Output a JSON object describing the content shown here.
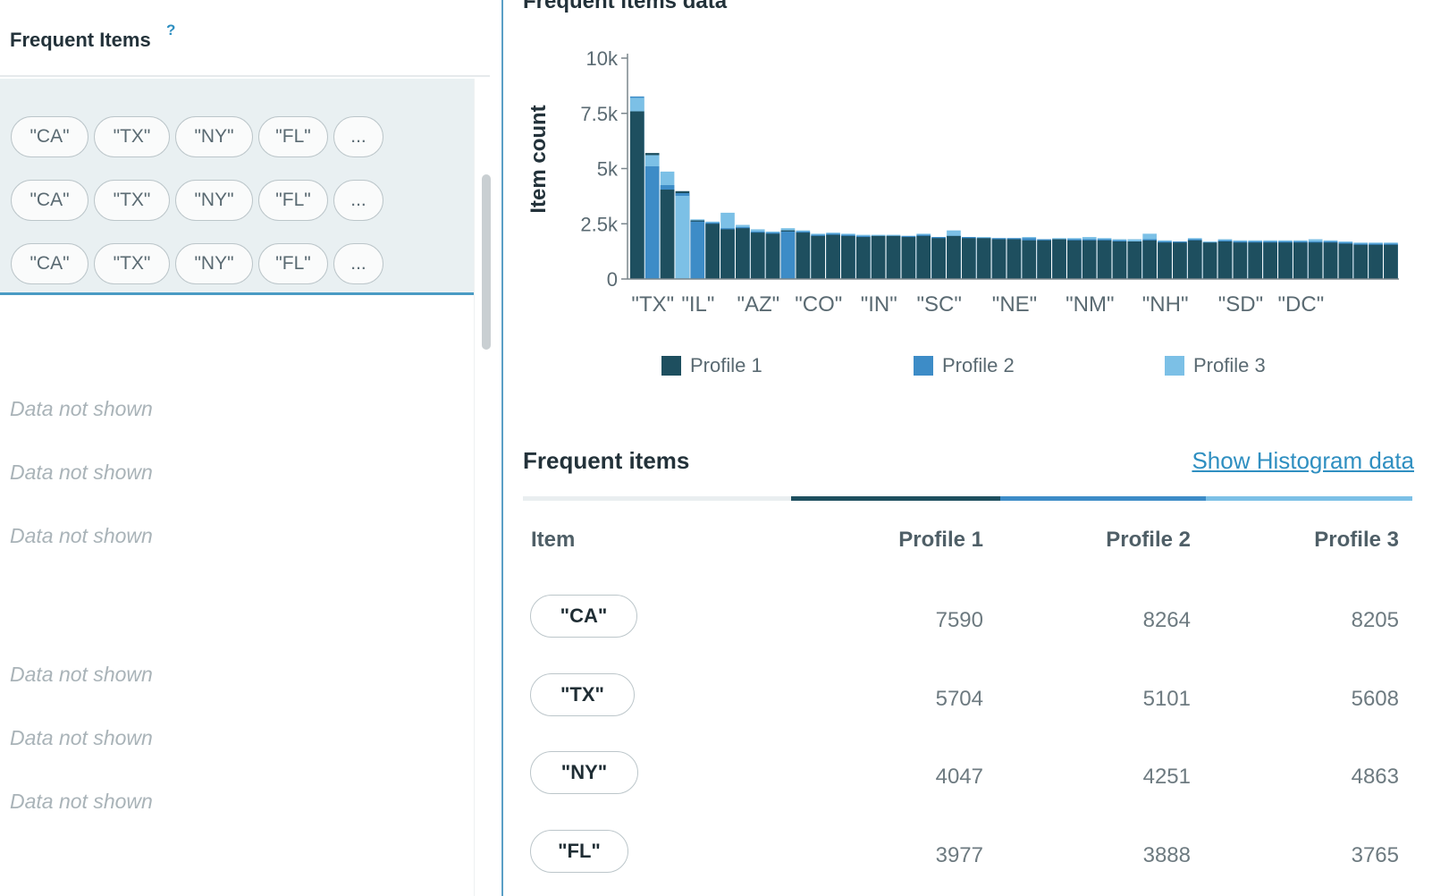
{
  "left": {
    "title": "Frequent Items",
    "help": "?",
    "chip_rows": [
      [
        "\"CA\"",
        "\"TX\"",
        "\"NY\"",
        "\"FL\"",
        "..."
      ],
      [
        "\"CA\"",
        "\"TX\"",
        "\"NY\"",
        "\"FL\"",
        "..."
      ],
      [
        "\"CA\"",
        "\"TX\"",
        "\"NY\"",
        "\"FL\"",
        "..."
      ]
    ],
    "not_shown": [
      "Data not shown",
      "Data not shown",
      "Data not shown",
      "Data not shown",
      "Data not shown",
      "Data not shown"
    ]
  },
  "right": {
    "title": "Frequent items data",
    "section_title": "Frequent items",
    "histogram_link": "Show Histogram data",
    "table": {
      "headers": [
        "Item",
        "Profile 1",
        "Profile 2",
        "Profile 3"
      ],
      "rows": [
        {
          "item": "\"CA\"",
          "p1": "7590",
          "p2": "8264",
          "p3": "8205"
        },
        {
          "item": "\"TX\"",
          "p1": "5704",
          "p2": "5101",
          "p3": "5608"
        },
        {
          "item": "\"NY\"",
          "p1": "4047",
          "p2": "4251",
          "p3": "4863"
        },
        {
          "item": "\"FL\"",
          "p1": "3977",
          "p2": "3888",
          "p3": "3765"
        }
      ]
    }
  },
  "colors": {
    "profile1": "#1e4f5f",
    "profile2": "#3d8cc7",
    "profile3": "#7cc0e6",
    "accent": "#4a9bc4"
  },
  "chart_data": {
    "type": "bar",
    "ylabel": "Item count",
    "ylim": [
      0,
      10000
    ],
    "y_ticks": [
      "0",
      "2.5k",
      "5k",
      "7.5k",
      "10k"
    ],
    "y_tick_values": [
      0,
      2500,
      5000,
      7500,
      10000
    ],
    "x_tick_labels": [
      "\"TX\"",
      "\"IL\"",
      "\"AZ\"",
      "\"CO\"",
      "\"IN\"",
      "\"SC\"",
      "\"NE\"",
      "\"NM\"",
      "\"NH\"",
      "\"SD\"",
      "\"DC\""
    ],
    "x_tick_positions": [
      1,
      4,
      8,
      12,
      16,
      20,
      25,
      30,
      35,
      40,
      44
    ],
    "categories_count": 51,
    "legend": [
      "Profile 1",
      "Profile 2",
      "Profile 3"
    ],
    "series": [
      {
        "name": "Profile 3",
        "values": [
          8205,
          5608,
          4863,
          3765,
          2700,
          2600,
          3000,
          2450,
          2250,
          2150,
          2300,
          2200,
          2050,
          2100,
          2050,
          2000,
          2000,
          2000,
          1950,
          2050,
          1900,
          2200,
          1900,
          1900,
          1850,
          1850,
          1900,
          1800,
          1850,
          1850,
          1900,
          1850,
          1800,
          1800,
          2050,
          1750,
          1700,
          1850,
          1700,
          1800,
          1750,
          1750,
          1750,
          1750,
          1750,
          1800,
          1750,
          1700,
          1650,
          1650,
          1650
        ]
      },
      {
        "name": "Profile 2",
        "values": [
          8264,
          5101,
          4251,
          3888,
          2600,
          2550,
          2300,
          2350,
          2150,
          2100,
          2150,
          2150,
          2000,
          2050,
          2000,
          1950,
          1950,
          1950,
          1950,
          2000,
          1900,
          1950,
          1900,
          1850,
          1850,
          1850,
          1850,
          1800,
          1800,
          1800,
          1800,
          1800,
          1750,
          1700,
          1800,
          1700,
          1700,
          1800,
          1650,
          1750,
          1700,
          1700,
          1700,
          1700,
          1700,
          1700,
          1700,
          1650,
          1600,
          1600,
          1600
        ]
      },
      {
        "name": "Profile 1",
        "values": [
          7590,
          5704,
          4047,
          3977,
          2650,
          2500,
          2250,
          2300,
          2100,
          2050,
          2200,
          2100,
          1950,
          2000,
          1950,
          1900,
          1950,
          1950,
          1900,
          1950,
          1850,
          1950,
          1850,
          1850,
          1800,
          1800,
          1750,
          1750,
          1800,
          1750,
          1750,
          1750,
          1700,
          1700,
          1750,
          1650,
          1650,
          1750,
          1650,
          1700,
          1650,
          1650,
          1650,
          1650,
          1650,
          1650,
          1650,
          1600,
          1550,
          1550,
          1550
        ]
      }
    ]
  }
}
